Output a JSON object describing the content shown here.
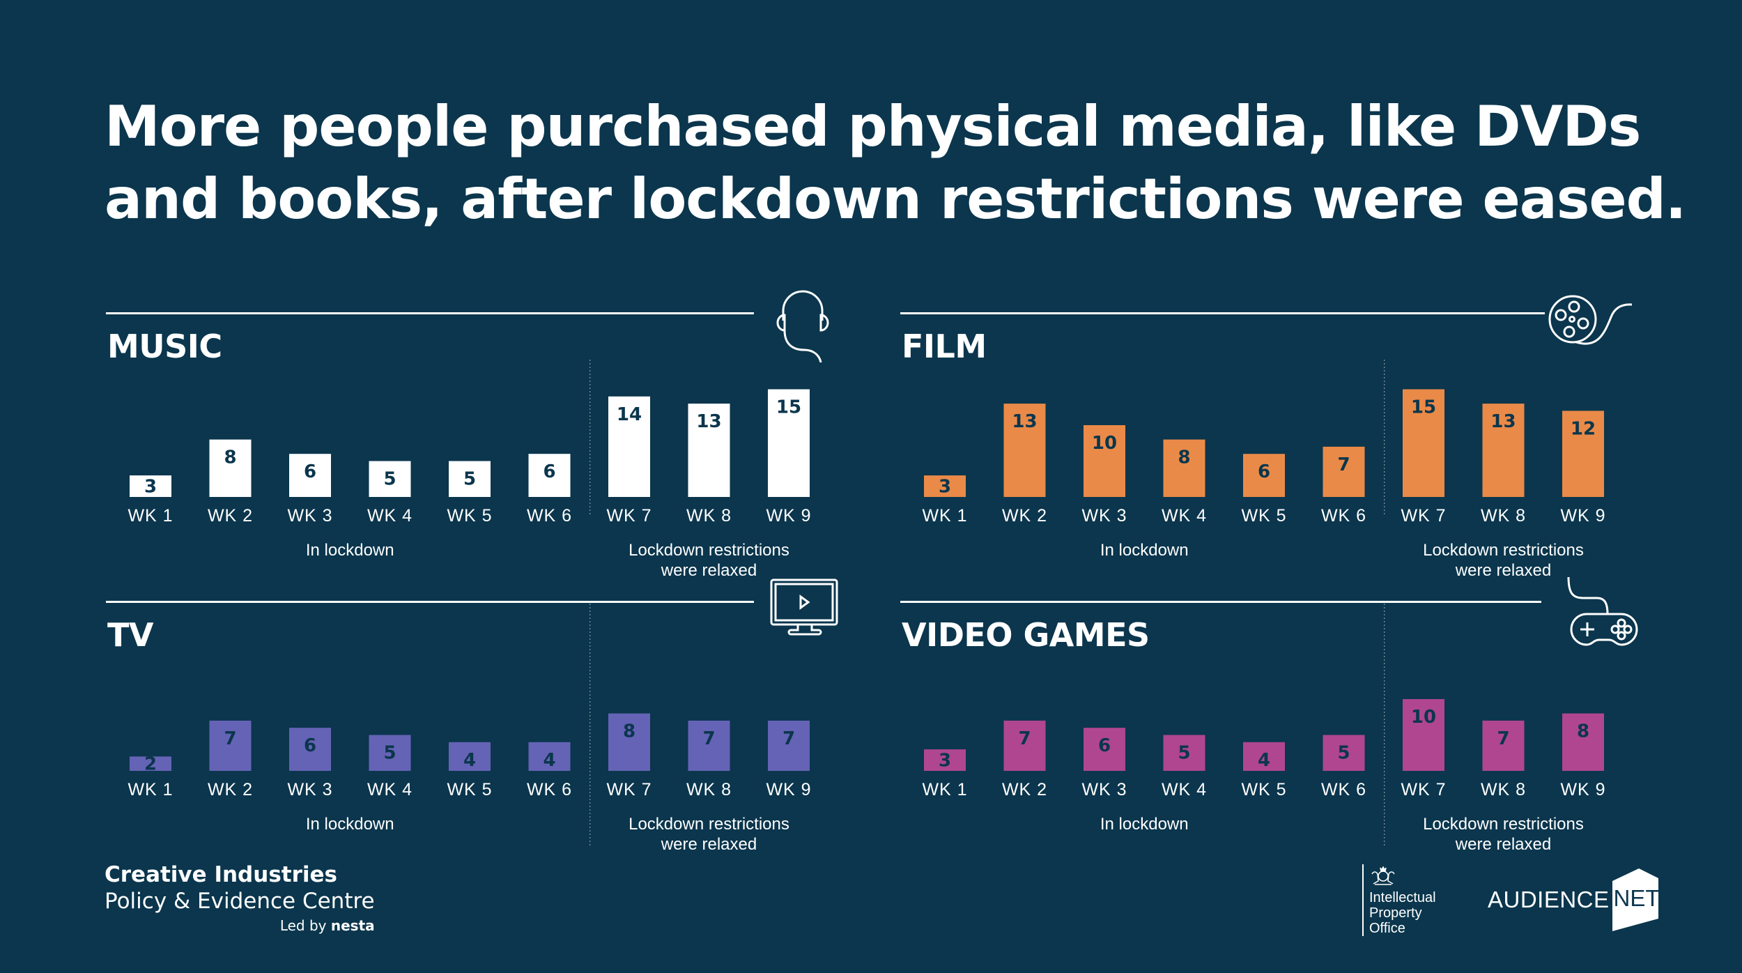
{
  "title": {
    "line1": "More people purchased physical media, like DVDs",
    "line2": "and books, after lockdown restrictions were eased."
  },
  "colors": {
    "background": "#0b364d",
    "music": "#ffffff",
    "film": "#ea8a48",
    "tv": "#6563b6",
    "video_games": "#b04690",
    "label_dark": "#0b364d"
  },
  "chart_data": [
    {
      "type": "bar",
      "title": "MUSIC",
      "icon": "headphones-icon",
      "categories": [
        "WK 1",
        "WK 2",
        "WK 3",
        "WK 4",
        "WK 5",
        "WK 6",
        "WK 7",
        "WK 8",
        "WK 9"
      ],
      "values": [
        3,
        8,
        6,
        5,
        5,
        6,
        14,
        13,
        15
      ],
      "groups": [
        {
          "label": "In lockdown",
          "weeks": [
            1,
            6
          ]
        },
        {
          "label": "Lockdown restrictions\nwere relaxed",
          "weeks": [
            7,
            9
          ]
        }
      ],
      "group_label_1": "In lockdown",
      "group_label_2a": "Lockdown restrictions",
      "group_label_2b": "were relaxed",
      "color": "#ffffff",
      "ylim": [
        0,
        15
      ]
    },
    {
      "type": "bar",
      "title": "FILM",
      "icon": "film-reel-icon",
      "categories": [
        "WK 1",
        "WK 2",
        "WK 3",
        "WK 4",
        "WK 5",
        "WK 6",
        "WK 7",
        "WK 8",
        "WK 9"
      ],
      "values": [
        3,
        13,
        10,
        8,
        6,
        7,
        15,
        13,
        12
      ],
      "group_label_1": "In lockdown",
      "group_label_2a": "Lockdown restrictions",
      "group_label_2b": "were relaxed",
      "color": "#ea8a48",
      "ylim": [
        0,
        15
      ]
    },
    {
      "type": "bar",
      "title": "TV",
      "icon": "tv-icon",
      "categories": [
        "WK 1",
        "WK 2",
        "WK 3",
        "WK 4",
        "WK 5",
        "WK 6",
        "WK 7",
        "WK 8",
        "WK 9"
      ],
      "values": [
        2,
        7,
        6,
        5,
        4,
        4,
        8,
        7,
        7
      ],
      "group_label_1": "In lockdown",
      "group_label_2a": "Lockdown restrictions",
      "group_label_2b": "were relaxed",
      "color": "#6563b6",
      "ylim": [
        0,
        15
      ]
    },
    {
      "type": "bar",
      "title": "VIDEO GAMES",
      "icon": "game-controller-icon",
      "categories": [
        "WK 1",
        "WK 2",
        "WK 3",
        "WK 4",
        "WK 5",
        "WK 6",
        "WK 7",
        "WK 8",
        "WK 9"
      ],
      "values": [
        3,
        7,
        6,
        5,
        4,
        5,
        10,
        7,
        8
      ],
      "group_label_1": "In lockdown",
      "group_label_2a": "Lockdown restrictions",
      "group_label_2b": "were relaxed",
      "color": "#b04690",
      "ylim": [
        0,
        15
      ]
    }
  ],
  "footer": {
    "org_line1": "Creative Industries",
    "org_line2": "Policy & Evidence Centre",
    "led_by": "Led by",
    "nesta": "nesta",
    "ipo_line1": "Intellectual",
    "ipo_line2": "Property",
    "ipo_line3": "Office",
    "audience": "AUDIENCE",
    "net": "NET"
  }
}
